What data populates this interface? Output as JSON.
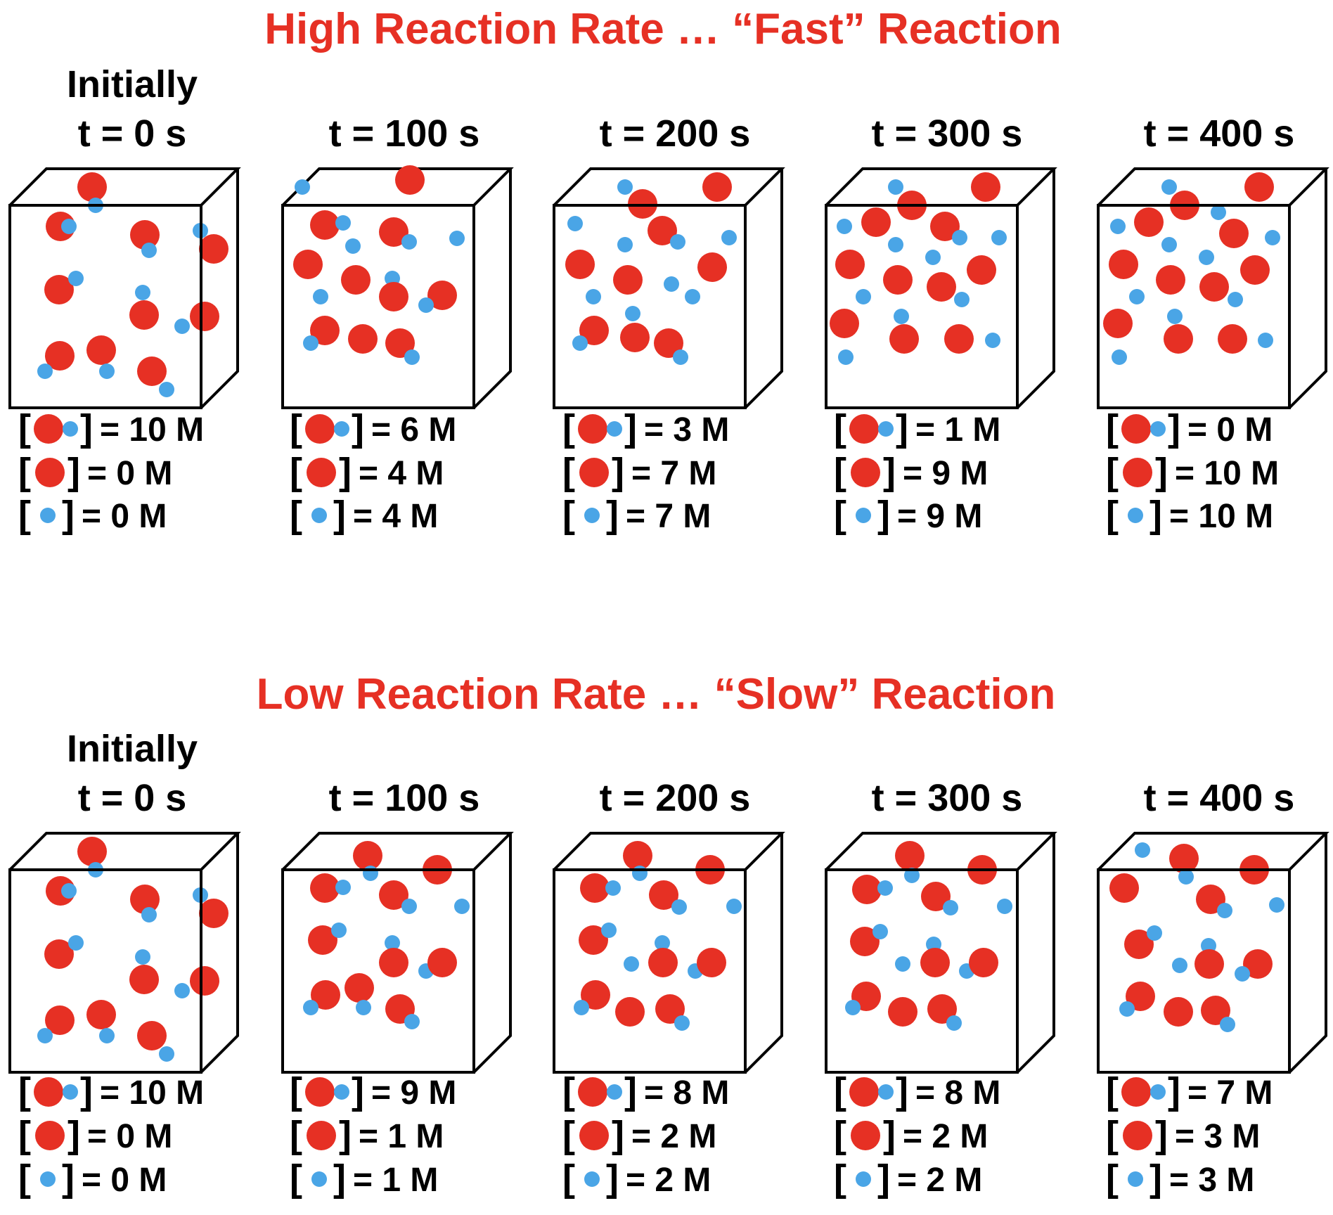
{
  "colors": {
    "red": "#e63024",
    "blue": "#4aa5e6",
    "ink": "#000000"
  },
  "sections": [
    {
      "title": "High Reaction Rate … “Fast” Reaction",
      "initial_label": "Initially",
      "panels": [
        {
          "time": "t = 0 s",
          "conc": [
            "= 10 M",
            "= 0 M",
            "= 0 M"
          ]
        },
        {
          "time": "t = 100 s",
          "conc": [
            "= 6 M",
            "= 4 M",
            "= 4 M"
          ]
        },
        {
          "time": "t = 200 s",
          "conc": [
            "= 3 M",
            "= 7 M",
            "= 7 M"
          ]
        },
        {
          "time": "t = 300 s",
          "conc": [
            "= 1 M",
            "= 9 M",
            "= 9 M"
          ]
        },
        {
          "time": "t = 400 s",
          "conc": [
            "= 0 M",
            "= 10 M",
            "= 10 M"
          ]
        }
      ]
    },
    {
      "title": "Low Reaction Rate … “Slow” Reaction",
      "initial_label": "Initially",
      "panels": [
        {
          "time": "t = 0 s",
          "conc": [
            "= 10 M",
            "= 0 M",
            "= 0 M"
          ]
        },
        {
          "time": "t = 100 s",
          "conc": [
            "= 9 M",
            "= 1 M",
            "= 1 M"
          ]
        },
        {
          "time": "t = 200 s",
          "conc": [
            "= 8 M",
            "= 2 M",
            "= 2 M"
          ]
        },
        {
          "time": "t = 300 s",
          "conc": [
            "= 8 M",
            "= 2 M",
            "= 2 M"
          ]
        },
        {
          "time": "t = 400 s",
          "conc": [
            "= 7 M",
            "= 3 M",
            "= 3 M"
          ]
        }
      ]
    }
  ]
}
